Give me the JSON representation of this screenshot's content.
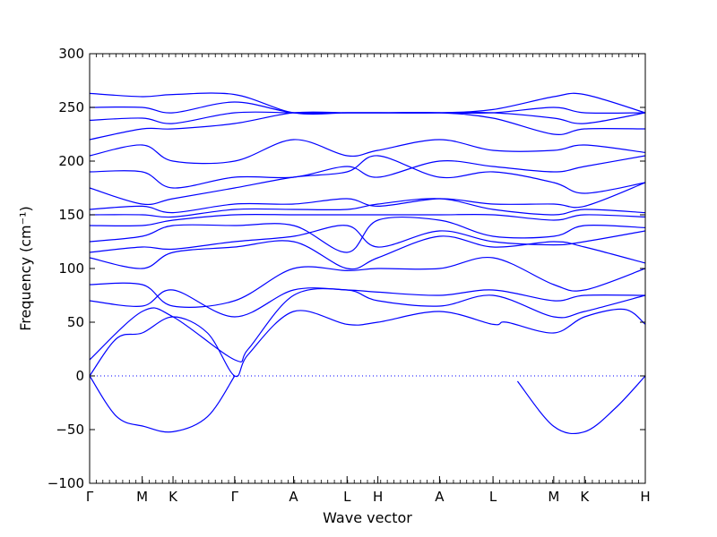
{
  "chart_data": {
    "type": "line",
    "xlabel": "Wave vector",
    "ylabel": "Frequency (cm⁻¹)",
    "ylim": [
      -100,
      300
    ],
    "yticks": [
      -100,
      -50,
      0,
      50,
      100,
      150,
      200,
      250,
      300
    ],
    "xticks": [
      {
        "label": "Γ",
        "x": 0.0
      },
      {
        "label": "M",
        "x": 0.58
      },
      {
        "label": "K",
        "x": 0.92
      },
      {
        "label": "Γ",
        "x": 1.6
      },
      {
        "label": "A",
        "x": 2.25
      },
      {
        "label": "L",
        "x": 2.84
      },
      {
        "label": "H",
        "x": 3.18
      },
      {
        "label": "A",
        "x": 3.86
      },
      {
        "label": "L",
        "x": 4.45
      },
      {
        "label": "M",
        "x": 5.12
      },
      {
        "label": "K",
        "x": 5.46
      },
      {
        "label": "H",
        "x": 6.13
      }
    ],
    "xlim": [
      0,
      6.13
    ],
    "zero_line": {
      "y": 0,
      "style": "dotted"
    },
    "line_color": "#0000ff",
    "series": [
      {
        "x": [
          0,
          0.3,
          0.6,
          0.92,
          1.3,
          1.6
        ],
        "y": [
          0,
          -38,
          -47,
          -52,
          -38,
          0
        ]
      },
      {
        "x": [
          4.72,
          5.12,
          5.46,
          5.8,
          6.13
        ],
        "y": [
          -5,
          -47,
          -52,
          -30,
          0
        ]
      },
      {
        "x": [
          0,
          0.3,
          0.58,
          0.92,
          1.3,
          1.6,
          1.75,
          2.25,
          2.84,
          3.18,
          3.86,
          4.45,
          4.6,
          5.12,
          5.46,
          5.9,
          6.13
        ],
        "y": [
          0,
          35,
          40,
          55,
          40,
          0,
          20,
          60,
          48,
          50,
          60,
          48,
          50,
          40,
          55,
          62,
          48
        ]
      },
      {
        "x": [
          0,
          0.58,
          0.92,
          1.6,
          1.75,
          2.25,
          2.84,
          3.18,
          3.86,
          4.45,
          5.12,
          5.46,
          6.13
        ],
        "y": [
          15,
          60,
          55,
          15,
          25,
          75,
          80,
          70,
          65,
          75,
          55,
          60,
          75
        ]
      },
      {
        "x": [
          0,
          0.58,
          0.92,
          1.6,
          2.25,
          2.84,
          3.18,
          3.86,
          4.45,
          5.12,
          5.46,
          6.13
        ],
        "y": [
          70,
          65,
          80,
          55,
          80,
          80,
          78,
          75,
          80,
          70,
          75,
          75
        ]
      },
      {
        "x": [
          0,
          0.58,
          0.92,
          1.6,
          2.25,
          2.84,
          3.18,
          3.86,
          4.45,
          5.12,
          5.46,
          6.13
        ],
        "y": [
          85,
          85,
          65,
          70,
          100,
          98,
          100,
          100,
          110,
          85,
          80,
          100
        ]
      },
      {
        "x": [
          0,
          0.58,
          0.92,
          1.6,
          2.25,
          2.84,
          3.18,
          3.86,
          4.45,
          5.12,
          5.46,
          6.13
        ],
        "y": [
          110,
          100,
          115,
          120,
          125,
          100,
          110,
          130,
          120,
          125,
          120,
          105
        ]
      },
      {
        "x": [
          0,
          0.58,
          0.92,
          1.6,
          2.25,
          2.84,
          3.18,
          3.86,
          4.45,
          5.12,
          5.46,
          6.13
        ],
        "y": [
          115,
          120,
          118,
          125,
          130,
          140,
          120,
          135,
          125,
          122,
          125,
          135
        ]
      },
      {
        "x": [
          0,
          0.58,
          0.92,
          1.6,
          2.25,
          2.84,
          3.18,
          3.86,
          4.45,
          5.12,
          5.46,
          6.13
        ],
        "y": [
          125,
          130,
          140,
          140,
          140,
          115,
          145,
          145,
          130,
          130,
          140,
          138
        ]
      },
      {
        "x": [
          0,
          0.58,
          0.92,
          1.6,
          2.25,
          2.84,
          3.18,
          3.86,
          4.45,
          5.12,
          5.46,
          6.13
        ],
        "y": [
          140,
          140,
          145,
          150,
          150,
          150,
          150,
          150,
          150,
          145,
          150,
          148
        ]
      },
      {
        "x": [
          0,
          0.58,
          0.92,
          1.6,
          2.25,
          2.84,
          3.18,
          3.86,
          4.45,
          5.12,
          5.46,
          6.13
        ],
        "y": [
          150,
          150,
          148,
          155,
          155,
          155,
          160,
          165,
          155,
          150,
          155,
          152
        ]
      },
      {
        "x": [
          0,
          0.58,
          0.92,
          1.6,
          2.25,
          2.84,
          3.18,
          3.86,
          4.45,
          5.12,
          5.46,
          6.13
        ],
        "y": [
          155,
          158,
          152,
          160,
          160,
          165,
          158,
          165,
          160,
          160,
          158,
          180
        ]
      },
      {
        "x": [
          0,
          0.58,
          0.92,
          1.6,
          2.25,
          2.84,
          3.18,
          3.86,
          4.45,
          5.12,
          5.46,
          6.13
        ],
        "y": [
          175,
          160,
          165,
          175,
          185,
          190,
          205,
          185,
          190,
          180,
          170,
          180
        ]
      },
      {
        "x": [
          0,
          0.58,
          0.92,
          1.6,
          2.25,
          2.84,
          3.18,
          3.86,
          4.45,
          5.12,
          5.46,
          6.13
        ],
        "y": [
          190,
          190,
          175,
          185,
          185,
          195,
          185,
          200,
          195,
          190,
          195,
          205
        ]
      },
      {
        "x": [
          0,
          0.58,
          0.92,
          1.6,
          2.25,
          2.84,
          3.18,
          3.86,
          4.45,
          5.12,
          5.46,
          6.13
        ],
        "y": [
          205,
          215,
          200,
          200,
          220,
          205,
          210,
          220,
          210,
          210,
          215,
          208
        ]
      },
      {
        "x": [
          0,
          0.58,
          0.92,
          1.6,
          2.25,
          2.84,
          3.18,
          3.86,
          4.45,
          5.12,
          5.46,
          6.13
        ],
        "y": [
          220,
          230,
          230,
          235,
          245,
          245,
          245,
          245,
          240,
          225,
          230,
          230
        ]
      },
      {
        "x": [
          0,
          0.58,
          0.92,
          1.6,
          2.25,
          2.84,
          3.18,
          3.86,
          4.45,
          5.12,
          5.46,
          6.13
        ],
        "y": [
          238,
          240,
          235,
          245,
          245,
          245,
          245,
          245,
          245,
          240,
          235,
          245
        ]
      },
      {
        "x": [
          0,
          0.58,
          0.92,
          1.6,
          2.25,
          2.84,
          3.18,
          3.86,
          4.45,
          5.12,
          5.46,
          6.13
        ],
        "y": [
          250,
          250,
          245,
          255,
          245,
          245,
          245,
          245,
          245,
          250,
          245,
          245
        ]
      },
      {
        "x": [
          0,
          0.58,
          0.92,
          1.6,
          2.25,
          2.84,
          3.18,
          3.86,
          4.45,
          5.12,
          5.46,
          6.13
        ],
        "y": [
          263,
          260,
          262,
          262,
          245,
          245,
          245,
          245,
          248,
          260,
          262,
          245
        ]
      }
    ]
  }
}
